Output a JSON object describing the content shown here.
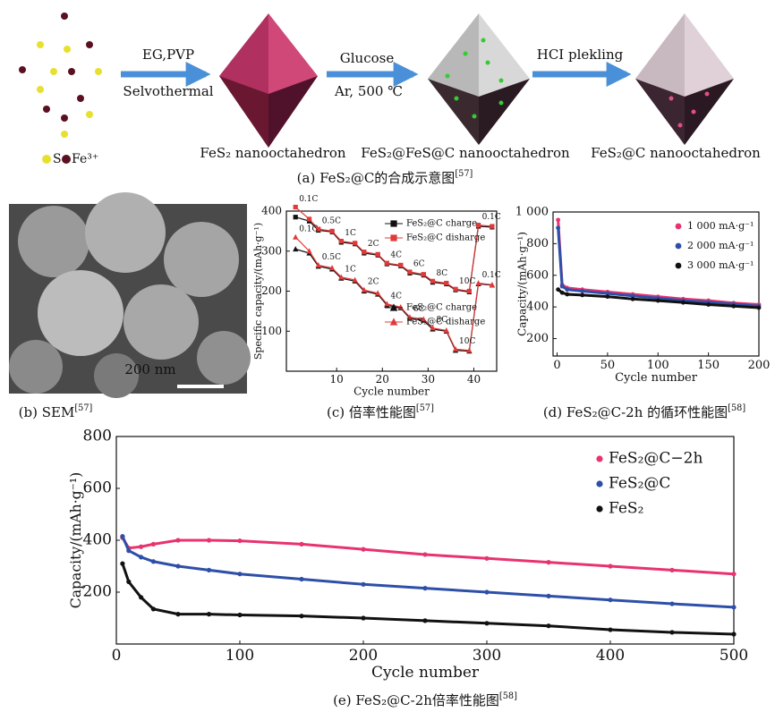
{
  "scheme": {
    "legend": [
      "S",
      "Fe³⁺"
    ],
    "steps": [
      {
        "top": "EG,PVP",
        "bottom": "Selvothermal"
      },
      {
        "top": "Glucose",
        "bottom": "Ar, 500 ℃"
      },
      {
        "top": "HCI plekling"
      }
    ],
    "products": [
      "FeS₂ nanooctahedron",
      "FeS₂@FeS@C nanooctahedron",
      "FeS₂@C nanooctahedron"
    ],
    "caption": {
      "text": "(a) FeS₂@C的合成示意图",
      "ref": "[57]"
    }
  },
  "sem": {
    "scale_bar": "200 nm",
    "caption": {
      "text": "(b) SEM",
      "ref": "[57]"
    }
  },
  "chart_data": [
    {
      "type": "line",
      "xlabel": "Cycle number",
      "ylabel": "Specific capacity/(mAh·g⁻¹)",
      "x": [
        1,
        4,
        6,
        9,
        11,
        14,
        16,
        19,
        21,
        24,
        26,
        29,
        31,
        34,
        36,
        39,
        41,
        44
      ],
      "series": [
        {
          "name": "FeS₂@C charge",
          "color": "#111111",
          "marker": "square",
          "values": [
            385,
            375,
            352,
            348,
            322,
            318,
            295,
            290,
            268,
            263,
            245,
            240,
            222,
            218,
            203,
            198,
            362,
            360
          ]
        },
        {
          "name": "FeS₂@C disharge",
          "color": "#e03a3a",
          "marker": "square",
          "values": [
            410,
            380,
            355,
            350,
            325,
            320,
            298,
            292,
            270,
            265,
            248,
            242,
            225,
            220,
            205,
            200,
            365,
            362
          ]
        },
        {
          "name": "FeS₂@C charge",
          "color": "#111111",
          "marker": "triangle",
          "values": [
            305,
            295,
            262,
            255,
            232,
            225,
            200,
            192,
            165,
            158,
            132,
            127,
            105,
            100,
            52,
            50,
            218,
            215
          ]
        },
        {
          "name": "FeS₂@C disharge",
          "color": "#e03a3a",
          "marker": "triangle",
          "values": [
            335,
            300,
            265,
            258,
            235,
            228,
            203,
            195,
            168,
            160,
            135,
            130,
            108,
            102,
            55,
            52,
            220,
            216
          ]
        }
      ],
      "annotations": {
        "upper": [
          "0.1C",
          "0.5C",
          "1C",
          "2C",
          "4C",
          "6C",
          "8C",
          "10C",
          "0.1C"
        ],
        "lower": [
          "0.1C",
          "0.5C",
          "1C",
          "2C",
          "4C",
          "6C",
          "8C",
          "10C",
          "0.1C"
        ]
      },
      "xlim": [
        -1,
        45
      ],
      "ylim": [
        0,
        400
      ],
      "xticks": [
        10,
        20,
        30,
        40
      ],
      "yticks": [
        100,
        200,
        300,
        400
      ],
      "caption": {
        "text": "(c) 倍率性能图",
        "ref": "[57]"
      }
    },
    {
      "type": "line",
      "xlabel": "Cycle number",
      "ylabel": "Capacity/(mAh·g⁻¹)",
      "x": [
        1,
        5,
        10,
        25,
        50,
        75,
        100,
        125,
        150,
        175,
        200
      ],
      "series": [
        {
          "name": "1 000 mA·g⁻¹",
          "color": "#e8336e",
          "marker": "circle",
          "values": [
            950,
            540,
            520,
            510,
            495,
            480,
            465,
            450,
            440,
            425,
            415
          ]
        },
        {
          "name": "2 000 mA·g⁻¹",
          "color": "#2e4fa8",
          "marker": "circle",
          "values": [
            900,
            530,
            510,
            500,
            485,
            470,
            455,
            440,
            430,
            418,
            405
          ]
        },
        {
          "name": "3 000 mA·g⁻¹",
          "color": "#111111",
          "marker": "circle",
          "values": [
            510,
            490,
            480,
            475,
            465,
            450,
            440,
            428,
            415,
            405,
            395
          ]
        }
      ],
      "xlim": [
        -4,
        200
      ],
      "ylim": [
        90,
        1000
      ],
      "xticks": [
        0,
        50,
        100,
        150,
        200
      ],
      "yticks": [
        200,
        400,
        600,
        800,
        {
          "value": 1000,
          "label": "1 000"
        }
      ],
      "caption": {
        "text": "(d) FeS₂@C-2h 的循环性能图",
        "ref": "[58]"
      }
    },
    {
      "type": "line",
      "xlabel": "Cycle number",
      "ylabel": "Capacity/(mAh·g⁻¹)",
      "x": [
        5,
        10,
        20,
        30,
        50,
        75,
        100,
        150,
        200,
        250,
        300,
        350,
        400,
        450,
        500
      ],
      "series": [
        {
          "name": "FeS₂@C−2h",
          "color": "#e8336e",
          "marker": "circle",
          "values": [
            410,
            370,
            375,
            385,
            400,
            400,
            398,
            385,
            365,
            345,
            330,
            315,
            300,
            285,
            270
          ]
        },
        {
          "name": "FeS₂@C",
          "color": "#2e4fa8",
          "marker": "circle",
          "values": [
            415,
            360,
            335,
            318,
            300,
            285,
            270,
            250,
            230,
            215,
            200,
            185,
            170,
            155,
            142
          ]
        },
        {
          "name": "FeS₂",
          "color": "#111111",
          "marker": "circle",
          "values": [
            310,
            240,
            180,
            135,
            115,
            115,
            112,
            108,
            100,
            90,
            80,
            70,
            55,
            45,
            38
          ]
        }
      ],
      "xlim": [
        0,
        500
      ],
      "ylim": [
        0,
        800
      ],
      "xticks": [
        0,
        100,
        200,
        300,
        400,
        500
      ],
      "yticks": [
        200,
        400,
        600,
        800
      ],
      "caption": {
        "text": "(e) FeS₂@C-2h倍率性能图",
        "ref": "[58]"
      }
    }
  ]
}
